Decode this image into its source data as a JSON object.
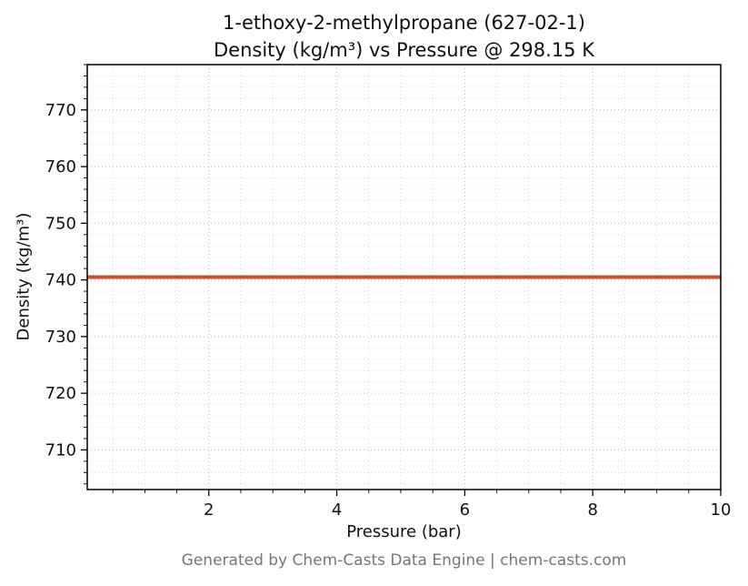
{
  "titles": {
    "line1": "1-ethoxy-2-methylpropane (627-02-1)",
    "line2": "Density (kg/m³) vs Pressure @ 298.15 K"
  },
  "footer": {
    "text": "Generated by Chem-Casts Data Engine | chem-casts.com"
  },
  "colors": {
    "line": "#cc4b28",
    "grid_major": "#bdbdbd",
    "grid_minor": "#dcdcdc",
    "frame": "#000000",
    "tick": "#000000",
    "text": "#111111",
    "footer_text": "#767676"
  },
  "chart_data": {
    "type": "line",
    "title": "1-ethoxy-2-methylpropane (627-02-1) — Density (kg/m³) vs Pressure @ 298.15 K",
    "xlabel": "Pressure (bar)",
    "ylabel": "Density (kg/m³)",
    "xlim": [
      0.1,
      10
    ],
    "ylim": [
      703,
      778
    ],
    "xticks": [
      2,
      4,
      6,
      8,
      10
    ],
    "yticks": [
      710,
      720,
      730,
      740,
      750,
      760,
      770
    ],
    "x_minor_step": 0.5,
    "y_minor_step": 2,
    "grid": true,
    "grid_style": "dotted",
    "legend": "none",
    "series": [
      {
        "name": "density",
        "color": "#cc4b28",
        "linewidth": 4,
        "x": [
          0.1,
          1,
          2,
          3,
          4,
          5,
          6,
          7,
          8,
          9,
          10
        ],
        "y": [
          740.5,
          740.5,
          740.5,
          740.5,
          740.5,
          740.5,
          740.5,
          740.5,
          740.5,
          740.5,
          740.5
        ]
      }
    ]
  }
}
